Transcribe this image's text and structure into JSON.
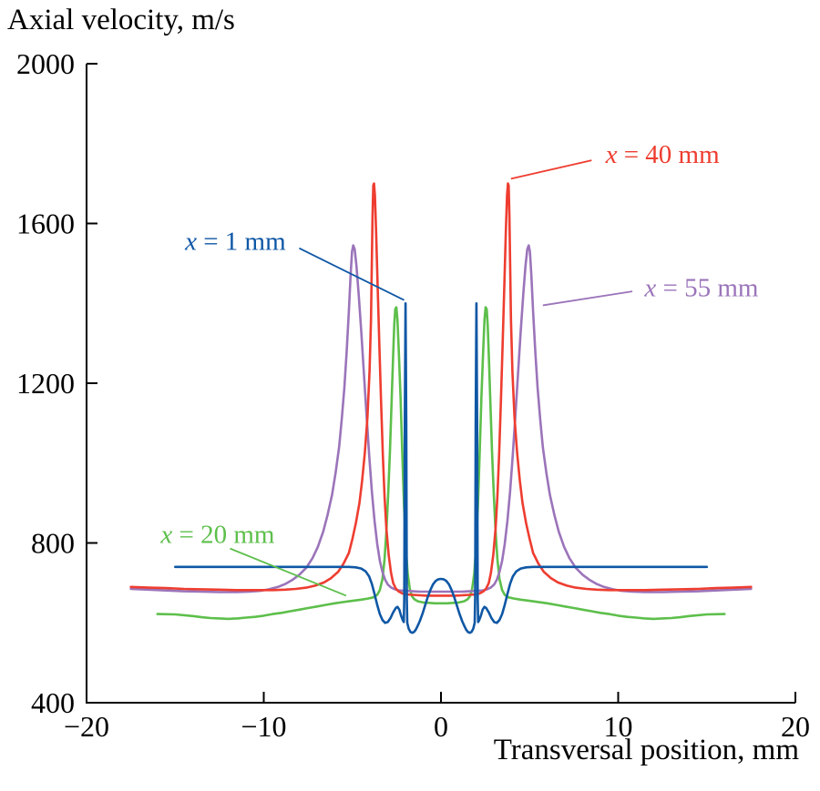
{
  "figure": {
    "background": "#ffffff",
    "axis_color": "#000000"
  },
  "chart_data": {
    "type": "line",
    "title": "Axial velocity, m/s",
    "ylabel": "Axial velocity, m/s",
    "xlabel": "Transversal position, mm",
    "xlim": [
      -20,
      20
    ],
    "ylim": [
      400,
      2000
    ],
    "grid": false,
    "legend": "inline-annotations",
    "axis_color": "#000000",
    "x_ticks": {
      "values": [
        -20,
        -10,
        0,
        10,
        20
      ],
      "labels": [
        "−20",
        "−10",
        "0",
        "10",
        "20"
      ]
    },
    "y_ticks": {
      "values": [
        400,
        800,
        1200,
        1600,
        2000
      ],
      "labels": [
        "400",
        "800",
        "1200",
        "1600",
        "2000"
      ]
    },
    "series": [
      {
        "id": "x1",
        "name": "x = 1 mm",
        "color": "#0f57a5",
        "width": 2.6,
        "z": 4,
        "mirror": true,
        "points": [
          [
            -15,
            740
          ],
          [
            -13,
            740
          ],
          [
            -11,
            740
          ],
          [
            -9,
            740
          ],
          [
            -7,
            740
          ],
          [
            -5.2,
            740
          ],
          [
            -4.8,
            739
          ],
          [
            -4.5,
            736
          ],
          [
            -4.25,
            729
          ],
          [
            -4.05,
            716
          ],
          [
            -3.9,
            698
          ],
          [
            -3.75,
            672
          ],
          [
            -3.6,
            645
          ],
          [
            -3.45,
            622
          ],
          [
            -3.3,
            607
          ],
          [
            -3.15,
            600
          ],
          [
            -3.0,
            602
          ],
          [
            -2.85,
            612
          ],
          [
            -2.7,
            626
          ],
          [
            -2.55,
            637
          ],
          [
            -2.45,
            640
          ],
          [
            -2.35,
            633
          ],
          [
            -2.25,
            618
          ],
          [
            -2.15,
            606
          ],
          [
            -2.1,
            602
          ],
          [
            -2.07,
            660
          ],
          [
            -2.04,
            1100
          ],
          [
            -2.0,
            1400
          ],
          [
            -1.96,
            1100
          ],
          [
            -1.93,
            660
          ],
          [
            -1.9,
            600
          ],
          [
            -1.82,
            585
          ],
          [
            -1.72,
            577
          ],
          [
            -1.62,
            575
          ],
          [
            -1.52,
            577
          ],
          [
            -1.42,
            583
          ],
          [
            -1.32,
            592
          ],
          [
            -1.2,
            604
          ],
          [
            -1.05,
            622
          ],
          [
            -0.9,
            643
          ],
          [
            -0.75,
            664
          ],
          [
            -0.6,
            682
          ],
          [
            -0.45,
            696
          ],
          [
            -0.3,
            705
          ],
          [
            -0.15,
            709
          ],
          [
            0,
            710
          ]
        ]
      },
      {
        "id": "x20",
        "name": "x = 20 mm",
        "color": "#5dbf4b",
        "width": 2.6,
        "z": 1,
        "mirror": true,
        "points": [
          [
            -16,
            622
          ],
          [
            -15,
            621
          ],
          [
            -14,
            617
          ],
          [
            -13.5,
            614
          ],
          [
            -13,
            612
          ],
          [
            -12.5,
            611
          ],
          [
            -12,
            610
          ],
          [
            -11.5,
            611
          ],
          [
            -11,
            613
          ],
          [
            -10.5,
            615
          ],
          [
            -10,
            618
          ],
          [
            -9.5,
            622
          ],
          [
            -9,
            625
          ],
          [
            -8.5,
            629
          ],
          [
            -8,
            633
          ],
          [
            -7.5,
            637
          ],
          [
            -7,
            641
          ],
          [
            -6.5,
            645
          ],
          [
            -6,
            649
          ],
          [
            -5.5,
            652
          ],
          [
            -5,
            655
          ],
          [
            -4.5,
            658
          ],
          [
            -4.1,
            661
          ],
          [
            -3.8,
            664
          ],
          [
            -3.6,
            670
          ],
          [
            -3.45,
            682
          ],
          [
            -3.3,
            710
          ],
          [
            -3.18,
            760
          ],
          [
            -3.08,
            830
          ],
          [
            -2.98,
            920
          ],
          [
            -2.88,
            1030
          ],
          [
            -2.78,
            1160
          ],
          [
            -2.7,
            1270
          ],
          [
            -2.64,
            1345
          ],
          [
            -2.58,
            1385
          ],
          [
            -2.52,
            1390
          ],
          [
            -2.46,
            1360
          ],
          [
            -2.38,
            1280
          ],
          [
            -2.28,
            1160
          ],
          [
            -2.18,
            1020
          ],
          [
            -2.08,
            890
          ],
          [
            -1.98,
            790
          ],
          [
            -1.88,
            725
          ],
          [
            -1.76,
            685
          ],
          [
            -1.64,
            667
          ],
          [
            -1.5,
            659
          ],
          [
            -1.3,
            654
          ],
          [
            -1.0,
            651
          ],
          [
            -0.7,
            650
          ],
          [
            -0.35,
            649
          ],
          [
            0,
            649
          ]
        ]
      },
      {
        "id": "x40",
        "name": "x = 40 mm",
        "color": "#ee3d30",
        "width": 2.6,
        "z": 3,
        "mirror": true,
        "points": [
          [
            -17.5,
            690
          ],
          [
            -16.5,
            688
          ],
          [
            -15.5,
            687
          ],
          [
            -14.5,
            685
          ],
          [
            -13.5,
            684
          ],
          [
            -12.5,
            683
          ],
          [
            -11.5,
            682
          ],
          [
            -10.5,
            682
          ],
          [
            -9.5,
            682
          ],
          [
            -8.8,
            683
          ],
          [
            -8.2,
            685
          ],
          [
            -7.6,
            688
          ],
          [
            -7.1,
            693
          ],
          [
            -6.6,
            701
          ],
          [
            -6.2,
            712
          ],
          [
            -5.8,
            728
          ],
          [
            -5.5,
            748
          ],
          [
            -5.2,
            775
          ],
          [
            -5.0,
            810
          ],
          [
            -4.8,
            850
          ],
          [
            -4.6,
            900
          ],
          [
            -4.45,
            955
          ],
          [
            -4.3,
            1025
          ],
          [
            -4.15,
            1115
          ],
          [
            -4.03,
            1230
          ],
          [
            -3.95,
            1360
          ],
          [
            -3.9,
            1500
          ],
          [
            -3.86,
            1620
          ],
          [
            -3.82,
            1695
          ],
          [
            -3.78,
            1700
          ],
          [
            -3.73,
            1670
          ],
          [
            -3.66,
            1580
          ],
          [
            -3.58,
            1450
          ],
          [
            -3.48,
            1300
          ],
          [
            -3.38,
            1150
          ],
          [
            -3.28,
            1020
          ],
          [
            -3.18,
            915
          ],
          [
            -3.08,
            835
          ],
          [
            -2.95,
            770
          ],
          [
            -2.82,
            725
          ],
          [
            -2.7,
            700
          ],
          [
            -2.55,
            686
          ],
          [
            -2.4,
            679
          ],
          [
            -2.2,
            674
          ],
          [
            -1.9,
            671
          ],
          [
            -1.6,
            670
          ],
          [
            -1.2,
            669
          ],
          [
            -0.8,
            668
          ],
          [
            -0.4,
            668
          ],
          [
            0,
            668
          ]
        ]
      },
      {
        "id": "x55",
        "name": "x = 55 mm",
        "color": "#9b74ba",
        "width": 2.6,
        "z": 2,
        "mirror": true,
        "points": [
          [
            -17.5,
            685
          ],
          [
            -16.5,
            683
          ],
          [
            -15.5,
            681
          ],
          [
            -14.5,
            679
          ],
          [
            -13.5,
            678
          ],
          [
            -12.5,
            677
          ],
          [
            -11.5,
            677
          ],
          [
            -10.8,
            678
          ],
          [
            -10.2,
            680
          ],
          [
            -9.7,
            684
          ],
          [
            -9.2,
            690
          ],
          [
            -8.8,
            697
          ],
          [
            -8.4,
            707
          ],
          [
            -8.0,
            720
          ],
          [
            -7.6,
            738
          ],
          [
            -7.25,
            762
          ],
          [
            -6.95,
            790
          ],
          [
            -6.65,
            828
          ],
          [
            -6.4,
            870
          ],
          [
            -6.15,
            920
          ],
          [
            -5.95,
            975
          ],
          [
            -5.75,
            1040
          ],
          [
            -5.6,
            1110
          ],
          [
            -5.45,
            1190
          ],
          [
            -5.32,
            1280
          ],
          [
            -5.2,
            1380
          ],
          [
            -5.1,
            1470
          ],
          [
            -5.02,
            1530
          ],
          [
            -4.95,
            1545
          ],
          [
            -4.87,
            1535
          ],
          [
            -4.77,
            1495
          ],
          [
            -4.65,
            1425
          ],
          [
            -4.5,
            1330
          ],
          [
            -4.35,
            1225
          ],
          [
            -4.2,
            1120
          ],
          [
            -4.05,
            1020
          ],
          [
            -3.9,
            930
          ],
          [
            -3.75,
            855
          ],
          [
            -3.6,
            798
          ],
          [
            -3.45,
            755
          ],
          [
            -3.3,
            727
          ],
          [
            -3.15,
            708
          ],
          [
            -3.0,
            696
          ],
          [
            -2.8,
            688
          ],
          [
            -2.6,
            684
          ],
          [
            -2.35,
            681
          ],
          [
            -2.0,
            680
          ],
          [
            -1.6,
            679
          ],
          [
            -1.2,
            678
          ],
          [
            -0.7,
            678
          ],
          [
            0,
            678
          ]
        ]
      }
    ],
    "annotations": [
      {
        "id": "x1",
        "var": "x",
        "rest": " = 1 mm",
        "color": "#0f57a5",
        "tx": -11.6,
        "ty": 1554,
        "line": [
          -8.0,
          1538,
          -2.08,
          1408
        ]
      },
      {
        "id": "x40",
        "var": "x",
        "rest": " = 40 mm",
        "color": "#ee3d30",
        "tx": 12.5,
        "ty": 1772,
        "line": [
          8.5,
          1758,
          3.95,
          1712
        ]
      },
      {
        "id": "x55",
        "var": "x",
        "rest": " = 55 mm",
        "color": "#9b74ba",
        "tx": 14.7,
        "ty": 1438,
        "line": [
          10.8,
          1430,
          5.75,
          1395
        ]
      },
      {
        "id": "x20",
        "var": "x",
        "rest": " = 20 mm",
        "color": "#5dbf4b",
        "tx": -12.6,
        "ty": 820,
        "line": [
          -11.9,
          786,
          -5.35,
          668
        ]
      }
    ]
  }
}
